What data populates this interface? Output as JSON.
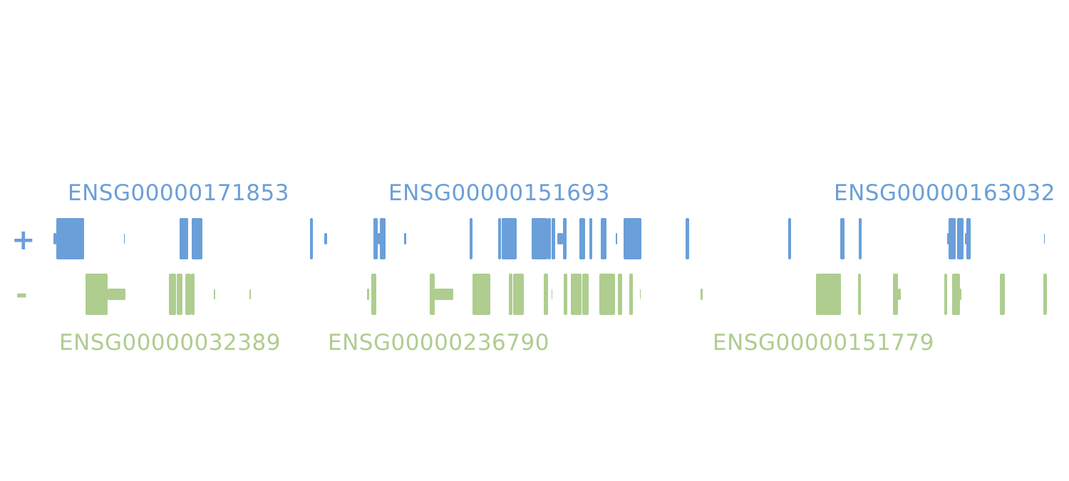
{
  "colors": {
    "plus": "#6a9fd9",
    "minus": "#aecd8f",
    "background": "#ffffff"
  },
  "strands": {
    "plus": "+",
    "minus": "-"
  },
  "genes": {
    "plus": [
      {
        "id": "ENSG00000171853"
      },
      {
        "id": "ENSG00000151693"
      },
      {
        "id": "ENSG00000163032"
      }
    ],
    "minus": [
      {
        "id": "ENSG00000032389"
      },
      {
        "id": "ENSG00000236790"
      },
      {
        "id": "ENSG00000151779"
      }
    ]
  }
}
